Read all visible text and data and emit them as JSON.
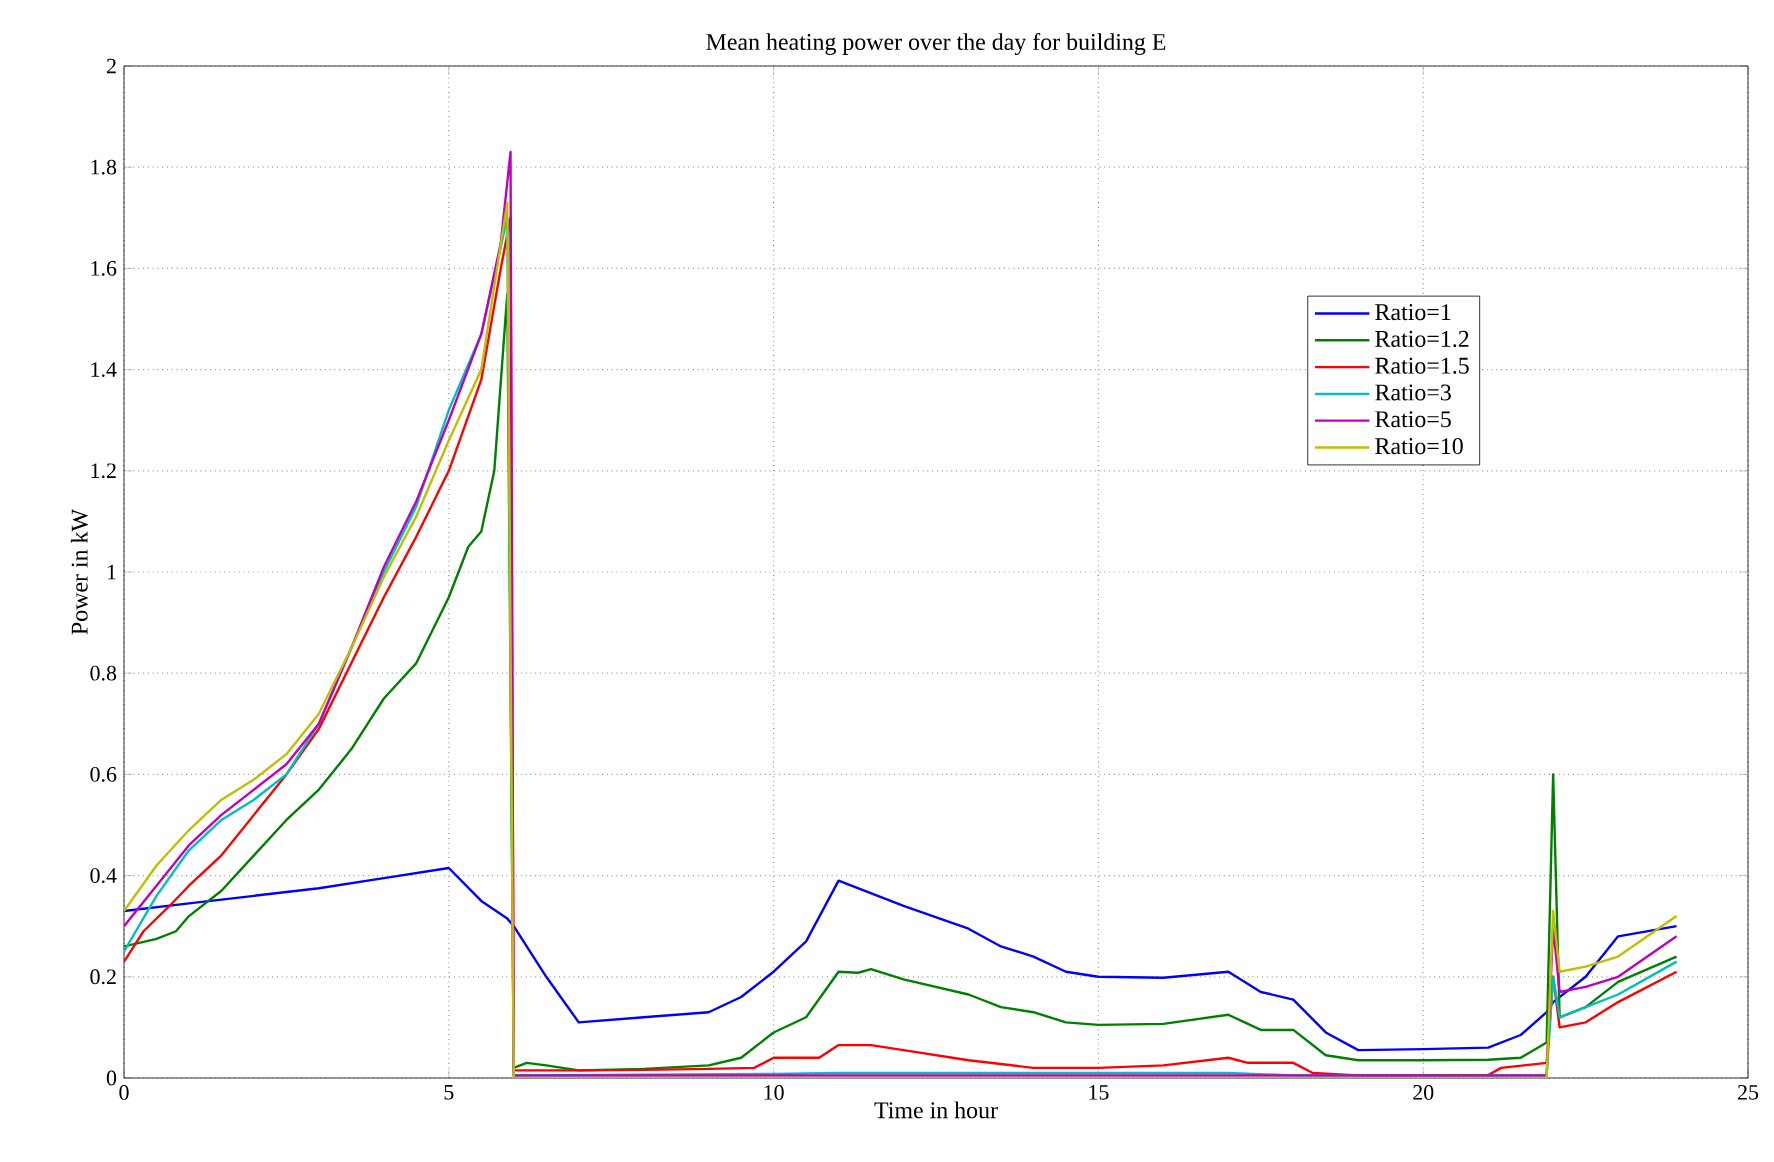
{
  "chart_data": {
    "type": "line",
    "title": "Mean heating power over the day for building E",
    "xlabel": "Time in hour",
    "ylabel": "Power in kW",
    "xlim": [
      0,
      25
    ],
    "ylim": [
      0,
      2
    ],
    "xticks": [
      0,
      5,
      10,
      15,
      20,
      25
    ],
    "yticks": [
      0,
      0.2,
      0.4,
      0.6,
      0.8,
      1,
      1.2,
      1.4,
      1.6,
      1.8,
      2
    ],
    "grid": true,
    "legend": "right",
    "line_style": "solid",
    "series": [
      {
        "name": "Ratio=1",
        "color": "#0000ff",
        "x": [
          0,
          1,
          2,
          3,
          4,
          5,
          5.5,
          5.9,
          6,
          6.5,
          7,
          8,
          9,
          9.5,
          10,
          10.5,
          11,
          12,
          13,
          13.5,
          14,
          14.5,
          15,
          16,
          17,
          17.5,
          18,
          18.5,
          19,
          20,
          21,
          21.5,
          21.9,
          22,
          22.5,
          23,
          23.9
        ],
        "values": [
          0.33,
          0.345,
          0.36,
          0.375,
          0.395,
          0.415,
          0.35,
          0.315,
          0.3,
          0.2,
          0.11,
          0.12,
          0.13,
          0.16,
          0.21,
          0.27,
          0.39,
          0.34,
          0.295,
          0.26,
          0.24,
          0.21,
          0.2,
          0.198,
          0.21,
          0.17,
          0.155,
          0.09,
          0.055,
          0.057,
          0.06,
          0.085,
          0.13,
          0.15,
          0.2,
          0.28,
          0.3
        ]
      },
      {
        "name": "Ratio=1.2",
        "color": "#008000",
        "x": [
          0,
          0.5,
          0.8,
          1,
          1.5,
          2,
          2.5,
          3,
          3.5,
          4,
          4.5,
          5,
          5.3,
          5.5,
          5.7,
          5.9,
          6,
          6.2,
          6.5,
          7,
          8,
          9,
          9.5,
          10,
          10.5,
          11,
          11.3,
          11.5,
          12,
          13,
          13.5,
          14,
          14.5,
          15,
          16,
          17,
          17.5,
          18,
          18.5,
          19,
          20,
          21,
          21.5,
          21.9,
          22,
          22.1,
          22.5,
          23,
          23.9
        ],
        "values": [
          0.26,
          0.275,
          0.29,
          0.32,
          0.37,
          0.44,
          0.51,
          0.57,
          0.65,
          0.75,
          0.82,
          0.95,
          1.05,
          1.08,
          1.2,
          1.55,
          0.02,
          0.03,
          0.025,
          0.015,
          0.018,
          0.025,
          0.04,
          0.09,
          0.12,
          0.21,
          0.208,
          0.215,
          0.195,
          0.165,
          0.14,
          0.13,
          0.11,
          0.105,
          0.107,
          0.125,
          0.095,
          0.095,
          0.045,
          0.035,
          0.035,
          0.036,
          0.04,
          0.07,
          0.6,
          0.12,
          0.14,
          0.19,
          0.24
        ]
      },
      {
        "name": "Ratio=1.5",
        "color": "#ff0000",
        "x": [
          0,
          0.3,
          0.7,
          1,
          1.5,
          2,
          2.5,
          3,
          3.5,
          4,
          4.5,
          5,
          5.5,
          5.8,
          5.95,
          6,
          7,
          8,
          9,
          9.7,
          10,
          10.7,
          11,
          11.5,
          12,
          13,
          14,
          15,
          16,
          17,
          17.3,
          18,
          18.3,
          19,
          20,
          21,
          21.2,
          21.9,
          22,
          22.1,
          22.5,
          23,
          23.9
        ],
        "values": [
          0.23,
          0.29,
          0.34,
          0.38,
          0.44,
          0.52,
          0.6,
          0.69,
          0.82,
          0.95,
          1.07,
          1.2,
          1.38,
          1.6,
          1.7,
          0.015,
          0.015,
          0.016,
          0.018,
          0.02,
          0.04,
          0.04,
          0.065,
          0.065,
          0.055,
          0.035,
          0.02,
          0.02,
          0.025,
          0.04,
          0.03,
          0.03,
          0.01,
          0.005,
          0.005,
          0.006,
          0.02,
          0.03,
          0.2,
          0.1,
          0.11,
          0.15,
          0.21
        ]
      },
      {
        "name": "Ratio=3",
        "color": "#00bfbf",
        "x": [
          0,
          0.5,
          1,
          1.5,
          2,
          2.5,
          3,
          3.5,
          4,
          4.5,
          5,
          5.5,
          5.9,
          6,
          10,
          11,
          17,
          18,
          21.9,
          22,
          22.1,
          22.5,
          23,
          23.9
        ],
        "values": [
          0.25,
          0.36,
          0.45,
          0.51,
          0.55,
          0.6,
          0.7,
          0.85,
          1.0,
          1.13,
          1.32,
          1.47,
          1.7,
          0.005,
          0.008,
          0.01,
          0.01,
          0.005,
          0.005,
          0.2,
          0.12,
          0.14,
          0.165,
          0.23
        ]
      },
      {
        "name": "Ratio=5",
        "color": "#bf00bf",
        "x": [
          0,
          0.5,
          1,
          1.5,
          2,
          2.5,
          3,
          3.5,
          4,
          4.5,
          5,
          5.5,
          5.8,
          5.95,
          6,
          21.9,
          22,
          22.1,
          22.5,
          23,
          23.9
        ],
        "values": [
          0.3,
          0.38,
          0.46,
          0.52,
          0.57,
          0.62,
          0.7,
          0.85,
          1.01,
          1.14,
          1.3,
          1.47,
          1.65,
          1.83,
          0.005,
          0.005,
          0.3,
          0.17,
          0.18,
          0.2,
          0.28
        ]
      },
      {
        "name": "Ratio=10",
        "color": "#bfbf00",
        "x": [
          0,
          0.5,
          1,
          1.5,
          2,
          2.5,
          3,
          3.5,
          4,
          4.5,
          5,
          5.5,
          5.9,
          6,
          21.9,
          22,
          22.1,
          22.5,
          23,
          23.9
        ],
        "values": [
          0.33,
          0.42,
          0.49,
          0.55,
          0.59,
          0.64,
          0.72,
          0.85,
          0.99,
          1.11,
          1.26,
          1.4,
          1.73,
          0,
          0,
          0.33,
          0.21,
          0.22,
          0.24,
          0.32
        ]
      }
    ]
  }
}
